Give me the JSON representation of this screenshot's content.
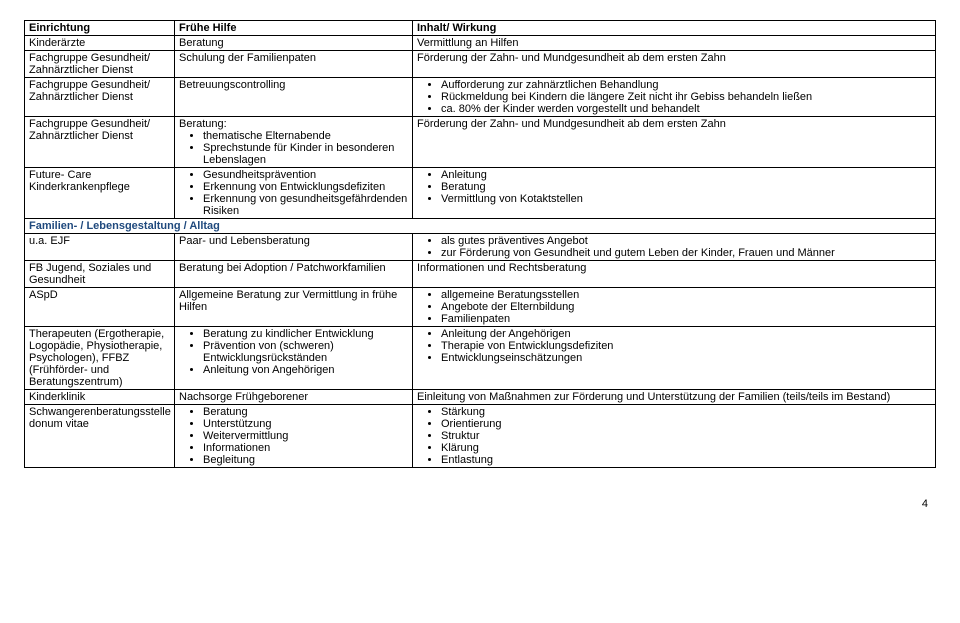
{
  "header": {
    "c1": "Einrichtung",
    "c2": "Frühe Hilfe",
    "c3": "Inhalt/ Wirkung"
  },
  "rows_top": [
    {
      "c1": "Kinderärzte",
      "c2": "Beratung",
      "c3": "Vermittlung an Hilfen"
    },
    {
      "c1": "Fachgruppe Gesundheit/ Zahnärztlicher Dienst",
      "c2": "Schulung der Familienpaten",
      "c3": "Förderung der Zahn- und Mundgesundheit ab dem ersten Zahn"
    },
    {
      "c1": "Fachgruppe Gesundheit/ Zahnärztlicher Dienst",
      "c2": "Betreuungscontrolling",
      "c3_items": [
        "Aufforderung zur zahnärztlichen Behandlung",
        "Rückmeldung bei Kindern die längere Zeit nicht ihr Gebiss behandeln ließen",
        "ca. 80% der Kinder werden vorgestellt und behandelt"
      ]
    },
    {
      "c1": "Fachgruppe Gesundheit/ Zahnärztlicher Dienst",
      "c2_pre": "Beratung:",
      "c2_items": [
        "thematische Elternabende",
        "Sprechstunde für Kinder in besonderen Lebenslagen"
      ],
      "c3": "Förderung der Zahn- und Mundgesundheit ab dem ersten Zahn"
    },
    {
      "c1": "Future- Care Kinderkrankenpflege",
      "c2_items": [
        "Gesundheitsprävention",
        "Erkennung von Entwicklungsdefiziten",
        "Erkennung von gesundheitsgefährdenden Risiken"
      ],
      "c3_items": [
        "Anleitung",
        "Beratung",
        "Vermittlung von Kotaktstellen"
      ]
    }
  ],
  "section": "Familien- / Lebensgestaltung / Alltag",
  "rows_bottom": [
    {
      "c1": "u.a. EJF",
      "c2": "Paar- und Lebensberatung",
      "c3_items": [
        "als gutes präventives Angebot",
        "zur Förderung von Gesundheit und gutem Leben der Kinder, Frauen und Männer"
      ]
    },
    {
      "c1": "FB Jugend, Soziales und Gesundheit",
      "c2": "Beratung bei Adoption / Patchworkfamilien",
      "c3": "Informationen und Rechtsberatung"
    },
    {
      "c1": "ASpD",
      "c2": "Allgemeine Beratung zur Vermittlung in frühe Hilfen",
      "c3_items": [
        "allgemeine Beratungsstellen",
        "Angebote der Elternbildung",
        "Familienpaten"
      ]
    },
    {
      "c1": "Therapeuten (Ergotherapie, Logopädie, Physiotherapie, Psychologen), FFBZ (Frühförder- und Beratungszentrum)",
      "c2_items": [
        "Beratung zu kindlicher Entwicklung",
        "Prävention von (schweren) Entwicklungsrückständen",
        "Anleitung von Angehörigen"
      ],
      "c3_items": [
        "Anleitung der Angehörigen",
        "Therapie von Entwicklungsdefiziten",
        "Entwicklungseinschätzungen"
      ]
    },
    {
      "c1": "Kinderklinik",
      "c2": "Nachsorge Frühgeborener",
      "c3": "Einleitung von Maßnahmen zur Förderung und Unterstützung der Familien (teils/teils im Bestand)"
    },
    {
      "c1": "Schwangerenberatungsstelle donum vitae",
      "c2_items": [
        "Beratung",
        "Unterstützung",
        "Weitervermittlung",
        "Informationen",
        "Begleitung"
      ],
      "c3_items": [
        "Stärkung",
        "Orientierung",
        "Struktur",
        "Klärung",
        "Entlastung"
      ]
    }
  ],
  "page": "4"
}
